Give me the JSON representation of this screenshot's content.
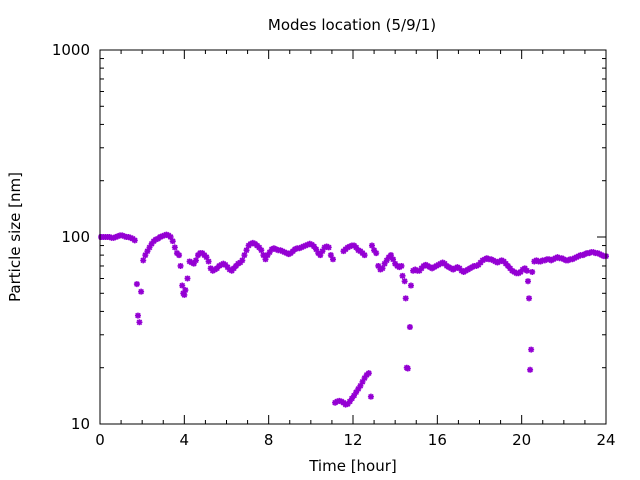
{
  "chart_data": {
    "type": "scatter",
    "title": "Modes location (5/9/1)",
    "xlabel": "Time [hour]",
    "ylabel": "Particle size [nm]",
    "xlim": [
      0,
      24
    ],
    "ylim": [
      10,
      1000
    ],
    "y_scale": "log",
    "x_ticks": [
      0,
      4,
      8,
      12,
      16,
      20,
      24
    ],
    "x_tick_labels": [
      "0",
      "4",
      "8",
      "12",
      "16",
      "20",
      "24"
    ],
    "y_ticks": [
      10,
      100,
      1000
    ],
    "y_tick_labels": [
      "10",
      "100",
      "1000"
    ],
    "grid": false,
    "legend": "none",
    "marker": "asterisk",
    "color": "#9400d3",
    "series": [
      {
        "points": [
          [
            0.05,
            100
          ],
          [
            0.15,
            100
          ],
          [
            0.25,
            100
          ],
          [
            0.35,
            100
          ],
          [
            0.45,
            100
          ],
          [
            0.55,
            99
          ],
          [
            0.65,
            99
          ],
          [
            0.75,
            100
          ],
          [
            0.85,
            101
          ],
          [
            0.95,
            102
          ],
          [
            1.05,
            102
          ],
          [
            1.15,
            101
          ],
          [
            1.25,
            100
          ],
          [
            1.35,
            100
          ],
          [
            1.45,
            99
          ],
          [
            1.55,
            98
          ],
          [
            1.65,
            96
          ],
          [
            1.75,
            56
          ],
          [
            1.8,
            38
          ],
          [
            1.87,
            35
          ],
          [
            1.95,
            51
          ],
          [
            2.05,
            75
          ],
          [
            2.15,
            80
          ],
          [
            2.25,
            84
          ],
          [
            2.35,
            88
          ],
          [
            2.45,
            92
          ],
          [
            2.55,
            95
          ],
          [
            2.65,
            97
          ],
          [
            2.75,
            98
          ],
          [
            2.85,
            100
          ],
          [
            2.95,
            101
          ],
          [
            3.05,
            102
          ],
          [
            3.15,
            103
          ],
          [
            3.25,
            102
          ],
          [
            3.35,
            100
          ],
          [
            3.45,
            95
          ],
          [
            3.55,
            88
          ],
          [
            3.65,
            82
          ],
          [
            3.75,
            80
          ],
          [
            3.82,
            70
          ],
          [
            3.9,
            55
          ],
          [
            3.95,
            50
          ],
          [
            4.0,
            49
          ],
          [
            4.05,
            52
          ],
          [
            4.15,
            60
          ],
          [
            4.25,
            74
          ],
          [
            4.35,
            73
          ],
          [
            4.45,
            72
          ],
          [
            4.55,
            75
          ],
          [
            4.65,
            80
          ],
          [
            4.75,
            82
          ],
          [
            4.85,
            82
          ],
          [
            4.95,
            80
          ],
          [
            5.05,
            78
          ],
          [
            5.15,
            74
          ],
          [
            5.25,
            68
          ],
          [
            5.35,
            66
          ],
          [
            5.45,
            67
          ],
          [
            5.55,
            68
          ],
          [
            5.65,
            70
          ],
          [
            5.75,
            71
          ],
          [
            5.85,
            72
          ],
          [
            5.95,
            71
          ],
          [
            6.05,
            69
          ],
          [
            6.15,
            67
          ],
          [
            6.25,
            66
          ],
          [
            6.35,
            68
          ],
          [
            6.45,
            70
          ],
          [
            6.55,
            72
          ],
          [
            6.65,
            73
          ],
          [
            6.75,
            75
          ],
          [
            6.85,
            80
          ],
          [
            6.95,
            85
          ],
          [
            7.05,
            90
          ],
          [
            7.15,
            92
          ],
          [
            7.25,
            93
          ],
          [
            7.35,
            92
          ],
          [
            7.45,
            90
          ],
          [
            7.55,
            88
          ],
          [
            7.65,
            85
          ],
          [
            7.75,
            80
          ],
          [
            7.85,
            76
          ],
          [
            7.95,
            80
          ],
          [
            8.05,
            83
          ],
          [
            8.15,
            86
          ],
          [
            8.25,
            87
          ],
          [
            8.35,
            86
          ],
          [
            8.45,
            85
          ],
          [
            8.55,
            85
          ],
          [
            8.65,
            84
          ],
          [
            8.75,
            83
          ],
          [
            8.85,
            82
          ],
          [
            8.95,
            81
          ],
          [
            9.05,
            82
          ],
          [
            9.15,
            84
          ],
          [
            9.25,
            86
          ],
          [
            9.35,
            87
          ],
          [
            9.45,
            87
          ],
          [
            9.55,
            88
          ],
          [
            9.65,
            89
          ],
          [
            9.75,
            90
          ],
          [
            9.85,
            91
          ],
          [
            9.95,
            92
          ],
          [
            10.05,
            91
          ],
          [
            10.15,
            89
          ],
          [
            10.25,
            86
          ],
          [
            10.35,
            82
          ],
          [
            10.45,
            80
          ],
          [
            10.55,
            84
          ],
          [
            10.65,
            88
          ],
          [
            10.75,
            89
          ],
          [
            10.85,
            88
          ],
          [
            10.95,
            80
          ],
          [
            11.05,
            76
          ],
          [
            11.15,
            13
          ],
          [
            11.25,
            13.2
          ],
          [
            11.35,
            13.3
          ],
          [
            11.45,
            13.2
          ],
          [
            11.55,
            13
          ],
          [
            11.65,
            12.7
          ],
          [
            11.75,
            12.8
          ],
          [
            11.85,
            13.2
          ],
          [
            11.95,
            13.7
          ],
          [
            12.05,
            14.2
          ],
          [
            12.15,
            14.8
          ],
          [
            12.25,
            15.4
          ],
          [
            12.35,
            16
          ],
          [
            12.45,
            16.8
          ],
          [
            12.55,
            17.6
          ],
          [
            12.65,
            18.3
          ],
          [
            12.75,
            18.7
          ],
          [
            12.85,
            14
          ],
          [
            11.55,
            84
          ],
          [
            11.65,
            86
          ],
          [
            11.75,
            88
          ],
          [
            11.85,
            89
          ],
          [
            11.95,
            90
          ],
          [
            12.05,
            90
          ],
          [
            12.15,
            88
          ],
          [
            12.25,
            85
          ],
          [
            12.35,
            84
          ],
          [
            12.45,
            82
          ],
          [
            12.55,
            80
          ],
          [
            12.9,
            90
          ],
          [
            13.0,
            85
          ],
          [
            13.1,
            82
          ],
          [
            13.2,
            70
          ],
          [
            13.3,
            67
          ],
          [
            13.4,
            68
          ],
          [
            13.5,
            72
          ],
          [
            13.6,
            75
          ],
          [
            13.7,
            78
          ],
          [
            13.8,
            80
          ],
          [
            13.9,
            76
          ],
          [
            14.0,
            72
          ],
          [
            14.1,
            70
          ],
          [
            14.2,
            69
          ],
          [
            14.3,
            70
          ],
          [
            14.35,
            62
          ],
          [
            14.45,
            58
          ],
          [
            14.5,
            47
          ],
          [
            14.55,
            20
          ],
          [
            14.6,
            19.8
          ],
          [
            14.7,
            33
          ],
          [
            14.75,
            55
          ],
          [
            14.85,
            66
          ],
          [
            14.95,
            67
          ],
          [
            15.05,
            66
          ],
          [
            15.15,
            66
          ],
          [
            15.25,
            68
          ],
          [
            15.35,
            70
          ],
          [
            15.45,
            71
          ],
          [
            15.55,
            70
          ],
          [
            15.65,
            69
          ],
          [
            15.75,
            68
          ],
          [
            15.85,
            69
          ],
          [
            15.95,
            70
          ],
          [
            16.05,
            71
          ],
          [
            16.15,
            72
          ],
          [
            16.25,
            73
          ],
          [
            16.35,
            72
          ],
          [
            16.45,
            70
          ],
          [
            16.55,
            69
          ],
          [
            16.65,
            68
          ],
          [
            16.75,
            67
          ],
          [
            16.85,
            68
          ],
          [
            16.95,
            69
          ],
          [
            17.05,
            68
          ],
          [
            17.15,
            66
          ],
          [
            17.25,
            65
          ],
          [
            17.35,
            66
          ],
          [
            17.45,
            67
          ],
          [
            17.55,
            68
          ],
          [
            17.65,
            69
          ],
          [
            17.75,
            70
          ],
          [
            17.85,
            70
          ],
          [
            17.95,
            71
          ],
          [
            18.05,
            73
          ],
          [
            18.15,
            75
          ],
          [
            18.25,
            76
          ],
          [
            18.35,
            77
          ],
          [
            18.45,
            76
          ],
          [
            18.55,
            76
          ],
          [
            18.65,
            75
          ],
          [
            18.75,
            74
          ],
          [
            18.85,
            73
          ],
          [
            18.95,
            74
          ],
          [
            19.05,
            75
          ],
          [
            19.15,
            74
          ],
          [
            19.25,
            72
          ],
          [
            19.35,
            70
          ],
          [
            19.45,
            68
          ],
          [
            19.55,
            66
          ],
          [
            19.65,
            65
          ],
          [
            19.75,
            64
          ],
          [
            19.85,
            64
          ],
          [
            19.95,
            65
          ],
          [
            20.05,
            67
          ],
          [
            20.15,
            68
          ],
          [
            20.25,
            66
          ],
          [
            20.3,
            58
          ],
          [
            20.35,
            47
          ],
          [
            20.4,
            19.5
          ],
          [
            20.45,
            25
          ],
          [
            20.5,
            65
          ],
          [
            20.6,
            74
          ],
          [
            20.7,
            75
          ],
          [
            20.8,
            74
          ],
          [
            20.9,
            74
          ],
          [
            21.0,
            75
          ],
          [
            21.1,
            75
          ],
          [
            21.2,
            76
          ],
          [
            21.3,
            76
          ],
          [
            21.4,
            75
          ],
          [
            21.5,
            76
          ],
          [
            21.6,
            77
          ],
          [
            21.7,
            78
          ],
          [
            21.8,
            77
          ],
          [
            21.9,
            77
          ],
          [
            22.0,
            76
          ],
          [
            22.1,
            75
          ],
          [
            22.2,
            75
          ],
          [
            22.3,
            76
          ],
          [
            22.4,
            76
          ],
          [
            22.5,
            77
          ],
          [
            22.6,
            78
          ],
          [
            22.7,
            79
          ],
          [
            22.8,
            80
          ],
          [
            22.9,
            80
          ],
          [
            23.0,
            81
          ],
          [
            23.1,
            82
          ],
          [
            23.2,
            82
          ],
          [
            23.3,
            83
          ],
          [
            23.4,
            83
          ],
          [
            23.5,
            82
          ],
          [
            23.6,
            82
          ],
          [
            23.7,
            81
          ],
          [
            23.8,
            80
          ],
          [
            23.9,
            79
          ],
          [
            24.0,
            79
          ]
        ]
      }
    ]
  }
}
